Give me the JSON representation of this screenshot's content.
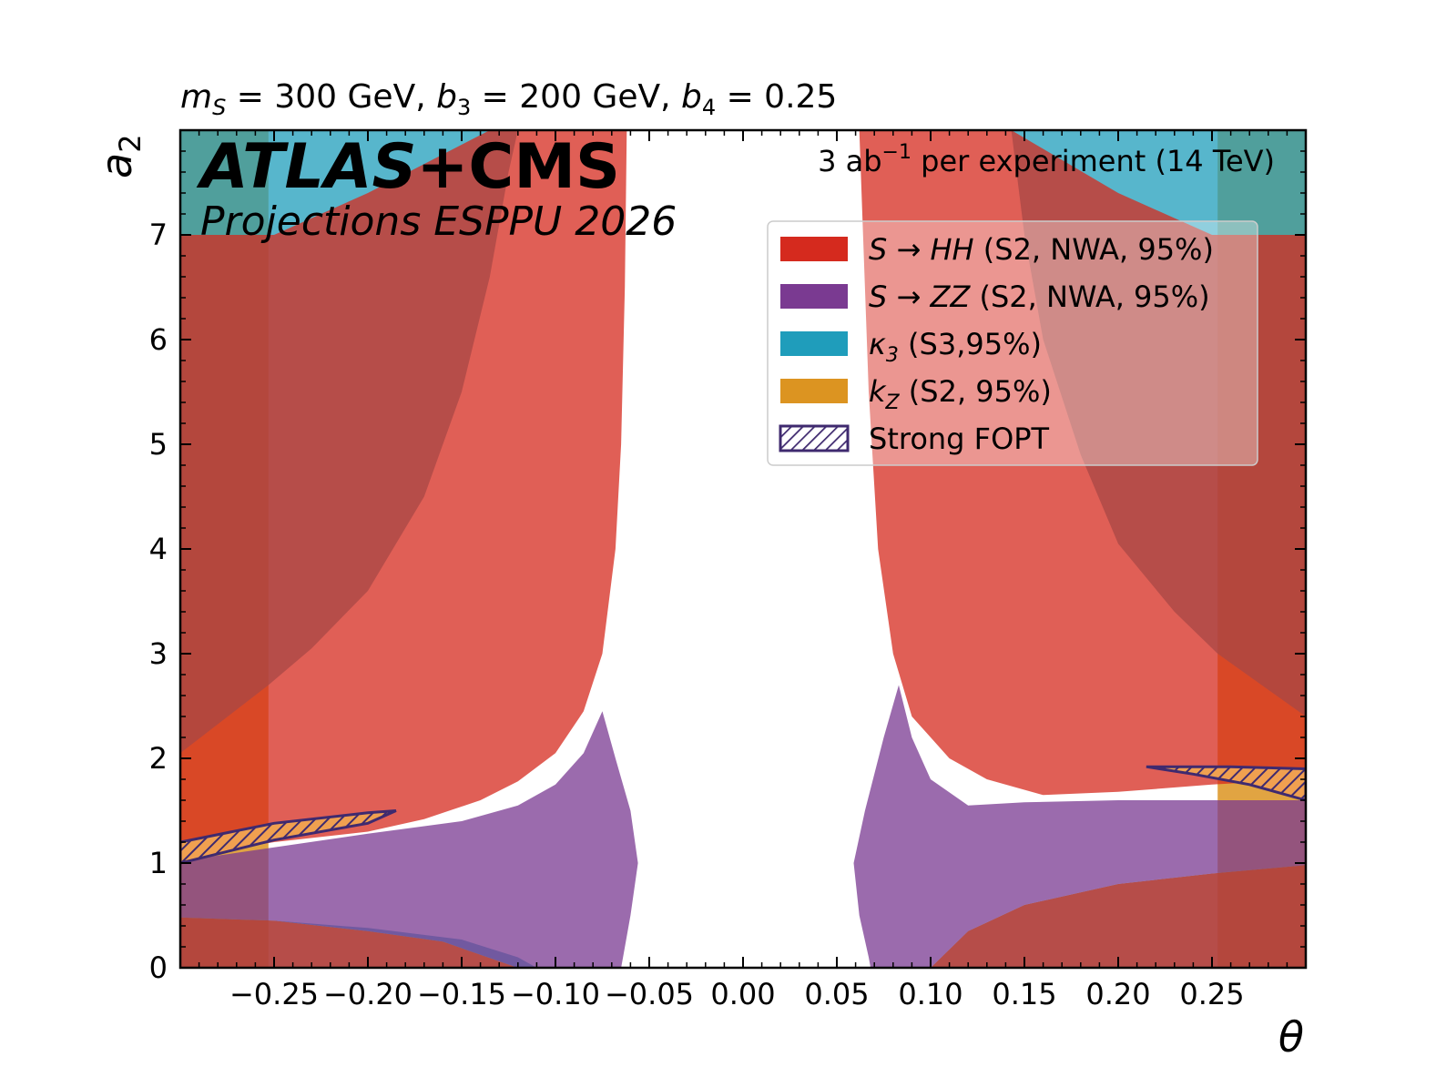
{
  "chart_data": {
    "type": "area",
    "title": "m_S = 300 GeV, b_3 = 200 GeV, b_4 = 0.25",
    "title_parts": {
      "ms": "m",
      "ms_sub": "S",
      "ms_val": " = 300 GeV, ",
      "b3": "b",
      "b3_sub": "3",
      "b3_val": " = 200 GeV, ",
      "b4": "b",
      "b4_sub": "4",
      "b4_val": " = 0.25"
    },
    "xlabel": "θ",
    "ylabel": "a",
    "ylabel_sub": "2",
    "xlim": [
      -0.3,
      0.3
    ],
    "ylim": [
      0,
      8
    ],
    "x_ticks": [
      -0.25,
      -0.2,
      -0.15,
      -0.1,
      -0.05,
      0.0,
      0.05,
      0.1,
      0.15,
      0.2,
      0.25
    ],
    "x_tick_labels": [
      "−0.25",
      "−0.20",
      "−0.15",
      "−0.10",
      "−0.05",
      "0.00",
      "0.05",
      "0.10",
      "0.15",
      "0.20",
      "0.25"
    ],
    "y_ticks": [
      0,
      1,
      2,
      3,
      4,
      5,
      6,
      7
    ],
    "y_tick_labels": [
      "0",
      "1",
      "2",
      "3",
      "4",
      "5",
      "6",
      "7"
    ],
    "experiment_label": "ATLAS+CMS",
    "experiment_label_atlas": "ATLAS",
    "experiment_label_cms": "+CMS",
    "projection_label": "Projections ESPPU 2026",
    "lumi_label": "3 ab⁻¹  per experiment (14 TeV)",
    "lumi_parts": {
      "pre": "3 ab",
      "sup": "−1",
      "post": "  per experiment (14 TeV)"
    },
    "colors": {
      "hh": "#d52a1e",
      "zz": "#7a3a91",
      "k3": "#1f9dbb",
      "kz": "#dc9421",
      "fopt": "#3f2a6f"
    },
    "legend": [
      {
        "key": "hh",
        "label_math": "S → HH",
        "label_rest": "  (S2, NWA, 95%)"
      },
      {
        "key": "zz",
        "label_math": "S → ZZ",
        "label_rest": "  (S2, NWA, 95%)"
      },
      {
        "key": "k3",
        "label_math": "κ",
        "label_sub": "3",
        "label_rest": "  (S3,95%)"
      },
      {
        "key": "kz",
        "label_math": "k",
        "label_sub": "Z",
        "label_rest": "  (S2, 95%)"
      },
      {
        "key": "fopt",
        "label_math": "",
        "label_rest": "Strong FOPT"
      }
    ],
    "series": [
      {
        "name": "kZ excluded (left)",
        "key": "kz",
        "polygon": [
          [
            -0.3,
            0
          ],
          [
            -0.253,
            0
          ],
          [
            -0.253,
            8
          ],
          [
            -0.3,
            8
          ]
        ]
      },
      {
        "name": "kZ excluded (right)",
        "key": "kz",
        "polygon": [
          [
            0.253,
            0
          ],
          [
            0.3,
            0
          ],
          [
            0.3,
            8
          ],
          [
            0.253,
            8
          ]
        ]
      },
      {
        "name": "kappa3 excluded (left)",
        "key": "k3",
        "polygon": [
          [
            -0.3,
            2.05
          ],
          [
            -0.253,
            2.7
          ],
          [
            -0.23,
            3.05
          ],
          [
            -0.2,
            3.6
          ],
          [
            -0.17,
            4.5
          ],
          [
            -0.15,
            5.5
          ],
          [
            -0.135,
            6.6
          ],
          [
            -0.125,
            7.6
          ],
          [
            -0.12,
            8
          ],
          [
            -0.3,
            8
          ]
        ]
      },
      {
        "name": "kappa3 excluded (right)",
        "key": "k3",
        "polygon": [
          [
            0.3,
            2.4
          ],
          [
            0.253,
            3.0
          ],
          [
            0.23,
            3.4
          ],
          [
            0.2,
            4.05
          ],
          [
            0.18,
            4.9
          ],
          [
            0.16,
            6.0
          ],
          [
            0.15,
            7.0
          ],
          [
            0.143,
            8
          ],
          [
            0.3,
            8
          ]
        ]
      },
      {
        "name": "kappa3 excluded (low-left)",
        "key": "k3",
        "polygon": [
          [
            -0.3,
            0.48
          ],
          [
            -0.25,
            0.45
          ],
          [
            -0.2,
            0.38
          ],
          [
            -0.15,
            0.27
          ],
          [
            -0.12,
            0.1
          ],
          [
            -0.11,
            0
          ],
          [
            -0.3,
            0
          ]
        ]
      },
      {
        "name": "kappa3 excluded (low-right)",
        "key": "k3",
        "polygon": [
          [
            0.3,
            0.98
          ],
          [
            0.25,
            0.9
          ],
          [
            0.2,
            0.8
          ],
          [
            0.15,
            0.6
          ],
          [
            0.12,
            0.35
          ],
          [
            0.1,
            0
          ],
          [
            0.3,
            0
          ]
        ]
      },
      {
        "name": "S to HH excluded (left)",
        "key": "hh",
        "polygon": [
          [
            -0.3,
            1.05
          ],
          [
            -0.25,
            1.2
          ],
          [
            -0.2,
            1.3
          ],
          [
            -0.17,
            1.42
          ],
          [
            -0.14,
            1.6
          ],
          [
            -0.12,
            1.78
          ],
          [
            -0.1,
            2.05
          ],
          [
            -0.085,
            2.45
          ],
          [
            -0.075,
            3.0
          ],
          [
            -0.068,
            4.0
          ],
          [
            -0.065,
            5.0
          ],
          [
            -0.063,
            6.5
          ],
          [
            -0.062,
            8
          ],
          [
            -0.135,
            8
          ],
          [
            -0.2,
            7.4
          ],
          [
            -0.25,
            7.0
          ],
          [
            -0.3,
            7.0
          ],
          [
            -0.3,
            0
          ],
          [
            -0.12,
            0
          ],
          [
            -0.16,
            0.25
          ],
          [
            -0.2,
            0.35
          ],
          [
            -0.25,
            0.45
          ],
          [
            -0.3,
            0.48
          ]
        ]
      },
      {
        "name": "S to HH excluded (right)",
        "key": "hh",
        "polygon": [
          [
            0.3,
            1.8
          ],
          [
            0.25,
            1.75
          ],
          [
            0.2,
            1.68
          ],
          [
            0.16,
            1.65
          ],
          [
            0.13,
            1.8
          ],
          [
            0.11,
            2.0
          ],
          [
            0.09,
            2.4
          ],
          [
            0.08,
            3.0
          ],
          [
            0.072,
            4.0
          ],
          [
            0.067,
            5.5
          ],
          [
            0.064,
            7.0
          ],
          [
            0.062,
            8
          ],
          [
            0.143,
            8
          ],
          [
            0.2,
            7.4
          ],
          [
            0.25,
            7.0
          ],
          [
            0.3,
            7.0
          ],
          [
            0.3,
            0.98
          ],
          [
            0.25,
            0.9
          ],
          [
            0.2,
            0.8
          ],
          [
            0.15,
            0.6
          ],
          [
            0.12,
            0.35
          ],
          [
            0.1,
            0
          ],
          [
            0.3,
            0
          ]
        ]
      },
      {
        "name": "S to ZZ excluded (left)",
        "key": "zz",
        "polygon": [
          [
            -0.3,
            1.02
          ],
          [
            -0.25,
            1.15
          ],
          [
            -0.2,
            1.28
          ],
          [
            -0.15,
            1.4
          ],
          [
            -0.12,
            1.55
          ],
          [
            -0.1,
            1.75
          ],
          [
            -0.085,
            2.05
          ],
          [
            -0.075,
            2.45
          ],
          [
            -0.068,
            2.0
          ],
          [
            -0.06,
            1.5
          ],
          [
            -0.056,
            1.0
          ],
          [
            -0.06,
            0.5
          ],
          [
            -0.064,
            0.1
          ],
          [
            -0.065,
            0
          ],
          [
            -0.12,
            0
          ],
          [
            -0.16,
            0.25
          ],
          [
            -0.2,
            0.35
          ],
          [
            -0.25,
            0.45
          ],
          [
            -0.3,
            0.48
          ]
        ]
      },
      {
        "name": "S to ZZ excluded (right)",
        "key": "zz",
        "polygon": [
          [
            0.3,
            1.6
          ],
          [
            0.25,
            1.6
          ],
          [
            0.2,
            1.6
          ],
          [
            0.15,
            1.58
          ],
          [
            0.12,
            1.55
          ],
          [
            0.1,
            1.8
          ],
          [
            0.09,
            2.2
          ],
          [
            0.083,
            2.7
          ],
          [
            0.075,
            2.2
          ],
          [
            0.065,
            1.5
          ],
          [
            0.059,
            1.0
          ],
          [
            0.062,
            0.5
          ],
          [
            0.067,
            0.1
          ],
          [
            0.068,
            0
          ],
          [
            0.1,
            0
          ],
          [
            0.12,
            0.35
          ],
          [
            0.15,
            0.6
          ],
          [
            0.2,
            0.8
          ],
          [
            0.25,
            0.9
          ],
          [
            0.3,
            0.98
          ]
        ]
      },
      {
        "name": "Strong FOPT (left)",
        "key": "fopt",
        "polygon": [
          [
            -0.3,
            1.0
          ],
          [
            -0.25,
            1.22
          ],
          [
            -0.2,
            1.38
          ],
          [
            -0.185,
            1.5
          ],
          [
            -0.2,
            1.48
          ],
          [
            -0.25,
            1.38
          ],
          [
            -0.3,
            1.2
          ]
        ]
      },
      {
        "name": "Strong FOPT (right)",
        "key": "fopt",
        "polygon": [
          [
            0.215,
            1.92
          ],
          [
            0.26,
            1.92
          ],
          [
            0.3,
            1.9
          ],
          [
            0.3,
            1.6
          ],
          [
            0.27,
            1.75
          ],
          [
            0.24,
            1.85
          ]
        ]
      }
    ]
  }
}
